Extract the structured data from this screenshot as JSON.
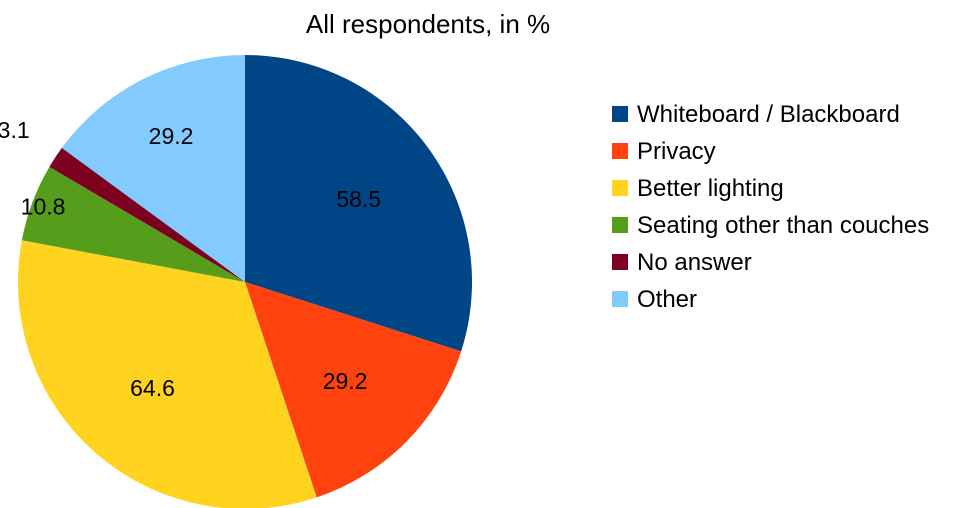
{
  "chart_data": {
    "type": "pie",
    "title": "All respondents, in %",
    "legend_position": "right",
    "slices": [
      {
        "label": "Whiteboard / Blackboard",
        "value": 58.5,
        "color": "#004586"
      },
      {
        "label": "Privacy",
        "value": 29.2,
        "color": "#ff420e"
      },
      {
        "label": "Better lighting",
        "value": 64.6,
        "color": "#ffd320"
      },
      {
        "label": "Seating other than couches",
        "value": 10.8,
        "color": "#579d1c"
      },
      {
        "label": "No answer",
        "value": 3.1,
        "color": "#7e0021"
      },
      {
        "label": "Other",
        "value": 29.2,
        "color": "#83caff"
      }
    ]
  }
}
